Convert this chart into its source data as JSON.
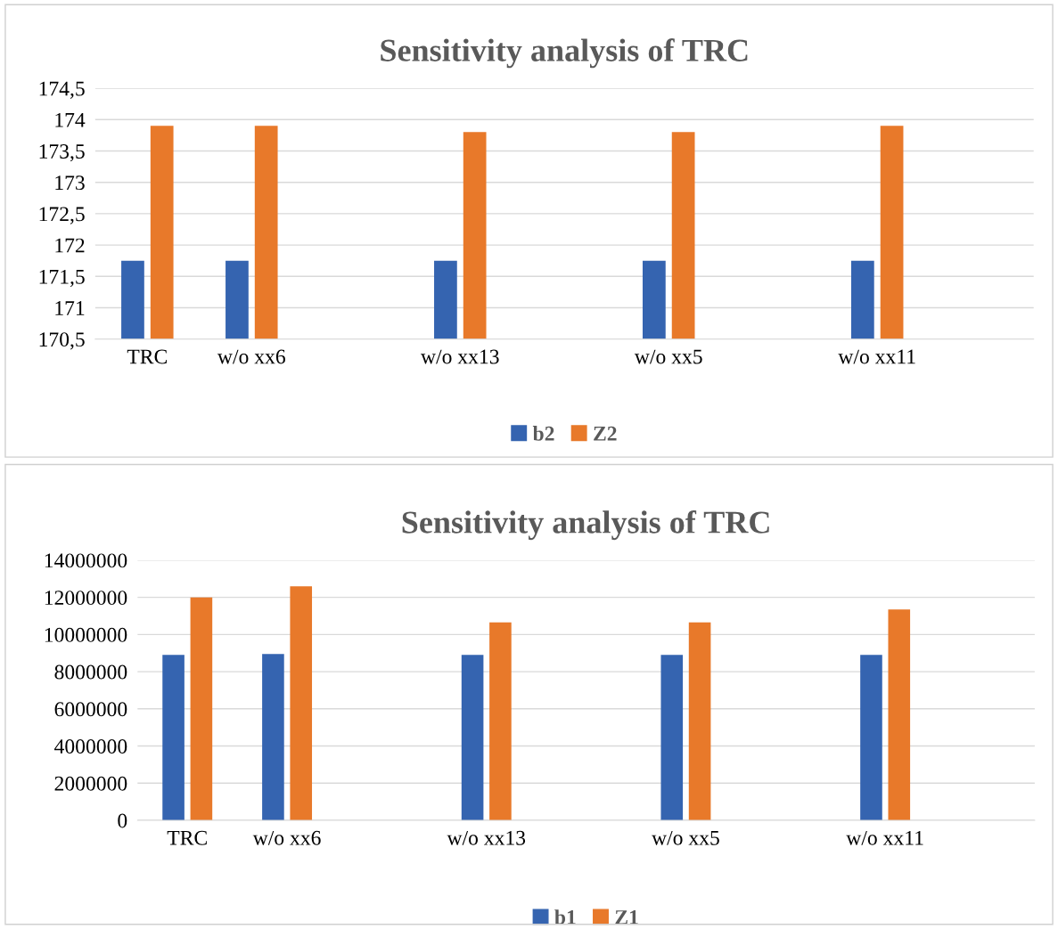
{
  "chart_data": [
    {
      "type": "bar",
      "title": "Sensitivity analysis of TRC",
      "categories": [
        "TRC",
        "w/o xx6",
        null,
        "w/o xx13",
        null,
        "w/o xx5",
        null,
        "w/o xx11",
        null
      ],
      "series": [
        {
          "name": "b2",
          "color": "#3564b0",
          "values": [
            171.75,
            171.75,
            null,
            171.75,
            null,
            171.75,
            null,
            171.75,
            null
          ]
        },
        {
          "name": "Z2",
          "color": "#e8792a",
          "values": [
            173.9,
            173.9,
            null,
            173.8,
            null,
            173.8,
            null,
            173.9,
            null
          ]
        }
      ],
      "ylim": [
        170.5,
        174.5
      ],
      "yticks": [
        {
          "value": 170.5,
          "label": "170,5"
        },
        171,
        {
          "value": 171.5,
          "label": "171,5"
        },
        172,
        {
          "value": 172.5,
          "label": "172,5"
        },
        173,
        {
          "value": 173.5,
          "label": "173,5"
        },
        174,
        {
          "value": 174.5,
          "label": "174,5"
        }
      ],
      "grid": "y",
      "legend": "bottom"
    },
    {
      "type": "bar",
      "title": "Sensitivity analysis of TRC",
      "categories": [
        "TRC",
        "w/o xx6",
        null,
        "w/o xx13",
        null,
        "w/o xx5",
        null,
        "w/o xx11",
        null
      ],
      "series": [
        {
          "name": "b1",
          "color": "#3564b0",
          "values": [
            8900000,
            8950000,
            null,
            8900000,
            null,
            8900000,
            null,
            8900000,
            null
          ]
        },
        {
          "name": "Z1",
          "color": "#e8792a",
          "values": [
            12000000,
            12600000,
            null,
            10650000,
            null,
            10650000,
            null,
            11350000,
            null
          ]
        }
      ],
      "ylim": [
        0,
        14000000
      ],
      "yticks": [
        0,
        2000000,
        4000000,
        6000000,
        8000000,
        10000000,
        12000000,
        14000000
      ],
      "grid": "y",
      "legend": "bottom"
    }
  ]
}
